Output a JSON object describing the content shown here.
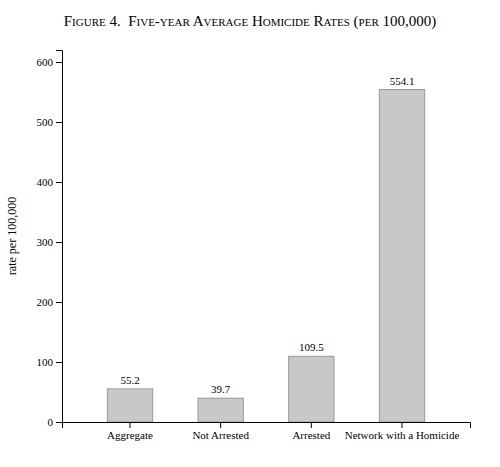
{
  "chart_data": {
    "type": "bar",
    "title": "Figure 4.  Five-year Average Homicide Rates (per 100,000)",
    "categories": [
      "Aggregate",
      "Not Arrested",
      "Arrested",
      "Network with a Homicide"
    ],
    "values": [
      55.2,
      39.7,
      109.5,
      554.1
    ],
    "color": "#c8c8c8",
    "ylabel": "rate per 100,000",
    "ylim": [
      0,
      620
    ],
    "yticks": [
      0,
      100,
      200,
      300,
      400,
      500,
      600
    ],
    "grid": false,
    "data_labels": true
  }
}
